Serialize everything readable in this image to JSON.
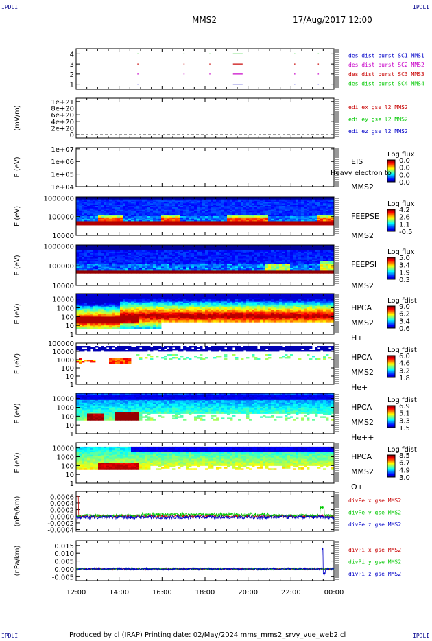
{
  "header": {
    "corner_label": "IPDLI",
    "spacecraft": "MMS2",
    "datetime": "17/Aug/2017 12:00"
  },
  "footer": {
    "text": "Produced by cl (IRAP)   Printing date: 02/May/2024   mms_mms2_srvy_vue_web2.cl"
  },
  "colors": {
    "blue": "#0000c8",
    "magenta": "#c800c8",
    "red": "#c80000",
    "green": "#00c800",
    "frame": "#000000"
  },
  "chart_data": [
    {
      "id": "des_dist",
      "type": "scatter",
      "ylim": [
        0.5,
        4.5
      ],
      "yticks": [
        "1",
        "2",
        "3",
        "4"
      ],
      "legend": [
        {
          "text": "des dist burst SC1 MMS1",
          "color": "#0000c8"
        },
        {
          "text": "des dist burst SC2 MMS2",
          "color": "#c800c8"
        },
        {
          "text": "des dist burst SC3 MMS3",
          "color": "#c80000"
        },
        {
          "text": "des dist burst SC4 MMS4",
          "color": "#00c800"
        }
      ],
      "series": [
        {
          "sc": 1,
          "color": "#0000c8",
          "segments": [
            [
              14.85,
              14.9
            ],
            [
              19.3,
              19.75
            ],
            [
              22.15,
              22.2
            ],
            [
              23.25,
              23.3
            ]
          ]
        },
        {
          "sc": 2,
          "color": "#c800c8",
          "segments": [
            [
              14.85,
              14.9
            ],
            [
              17.0,
              17.02
            ],
            [
              18.2,
              18.22
            ],
            [
              19.3,
              19.75
            ],
            [
              22.15,
              22.2
            ],
            [
              23.25,
              23.3
            ]
          ]
        },
        {
          "sc": 3,
          "color": "#c80000",
          "segments": [
            [
              14.85,
              14.9
            ],
            [
              17.0,
              17.02
            ],
            [
              18.2,
              18.22
            ],
            [
              19.3,
              19.75
            ],
            [
              22.15,
              22.2
            ],
            [
              23.25,
              23.3
            ]
          ]
        },
        {
          "sc": 4,
          "color": "#00c800",
          "segments": [
            [
              14.85,
              14.9
            ],
            [
              17.0,
              17.02
            ],
            [
              18.2,
              18.22
            ],
            [
              19.3,
              19.75
            ],
            [
              22.15,
              22.2
            ],
            [
              23.25,
              23.3
            ]
          ]
        }
      ]
    },
    {
      "id": "edi",
      "type": "line",
      "ylabel": "(mV/m)",
      "ylim": [
        -1e+20,
        1.1e+21
      ],
      "yticks": [
        "0",
        "2e+20",
        "4e+20",
        "6e+20",
        "8e+20",
        "1e+21"
      ],
      "yvalues": [
        0,
        2e+20,
        4e+20,
        6e+20,
        8e+20,
        1e+21
      ],
      "legend": [
        {
          "text": "edi ex gse l2 MMS2",
          "color": "#c80000"
        },
        {
          "text": "edi ey gse l2 MMS2",
          "color": "#00c800"
        },
        {
          "text": "edi ez gse l2 MMS2",
          "color": "#0000c8"
        }
      ]
    },
    {
      "id": "eis",
      "type": "heatmap",
      "ylabel": "E (eV)",
      "yticks": [
        "1e+04",
        "1e+05",
        "1e+06",
        "1e+07"
      ],
      "ylog": [
        4,
        7.1
      ],
      "labels": [
        "EIS",
        "Heavy electron to",
        "MMS2"
      ],
      "colorbar": {
        "title": "Log flux",
        "ticks": [
          "0.0",
          "0.0",
          "0.0",
          "0.0"
        ]
      }
    },
    {
      "id": "feeps_e",
      "type": "heatmap",
      "ylabel": "E (eV)",
      "yticks": [
        "10000",
        "100000",
        "1000000"
      ],
      "ylog": [
        4,
        6.05
      ],
      "labels": [
        "FEEPSE",
        "MMS2"
      ],
      "colorbar": {
        "title": "Log flux",
        "ticks": [
          "4.2",
          "2.6",
          "1.1",
          "-0.5"
        ]
      }
    },
    {
      "id": "feeps_i",
      "type": "heatmap",
      "ylabel": "E (eV)",
      "yticks": [
        "10000",
        "100000",
        "1000000"
      ],
      "ylog": [
        4,
        6.05
      ],
      "labels": [
        "FEEPSI",
        "MMS2"
      ],
      "colorbar": {
        "title": "Log flux",
        "ticks": [
          "5.0",
          "3.4",
          "1.9",
          "0.3"
        ]
      }
    },
    {
      "id": "hpca_h",
      "type": "heatmap",
      "ylabel": "E (eV)",
      "yticks": [
        "1",
        "10",
        "100",
        "1000",
        "10000"
      ],
      "ylog": [
        0,
        4.6
      ],
      "labels": [
        "HPCA",
        "MMS2",
        "H+"
      ],
      "colorbar": {
        "title": "Log fdist",
        "ticks": [
          "9.0",
          "6.2",
          "3.4",
          "0.6"
        ]
      }
    },
    {
      "id": "hpca_he",
      "type": "heatmap",
      "ylabel": "E (eV)",
      "yticks": [
        "1",
        "10",
        "100",
        "1000",
        "10000",
        "100000"
      ],
      "ylog": [
        0,
        5
      ],
      "labels": [
        "HPCA",
        "MMS2",
        "He+"
      ],
      "colorbar": {
        "title": "Log fdist",
        "ticks": [
          "6.0",
          "4.6",
          "3.2",
          "1.8"
        ]
      }
    },
    {
      "id": "hpca_he2",
      "type": "heatmap",
      "ylabel": "E (eV)",
      "yticks": [
        "1",
        "10",
        "100",
        "1000",
        "10000"
      ],
      "ylog": [
        0,
        4.6
      ],
      "labels": [
        "HPCA",
        "MMS2",
        "He++"
      ],
      "colorbar": {
        "title": "Log fdist",
        "ticks": [
          "6.9",
          "5.1",
          "3.3",
          "1.5"
        ]
      }
    },
    {
      "id": "hpca_o",
      "type": "heatmap",
      "ylabel": "E (eV)",
      "yticks": [
        "1",
        "10",
        "100",
        "1000",
        "10000"
      ],
      "ylog": [
        0,
        4.6
      ],
      "labels": [
        "HPCA",
        "MMS2",
        "O+"
      ],
      "colorbar": {
        "title": "Log fdist",
        "ticks": [
          "8.5",
          "6.7",
          "4.9",
          "3.0"
        ]
      }
    },
    {
      "id": "divpe",
      "type": "line",
      "ylabel": "(nPa/km)",
      "ylim": [
        -0.00045,
        0.00075
      ],
      "yticks": [
        "-0.0004",
        "-0.0002",
        "0.0000",
        "0.0002",
        "0.0004",
        "0.0006"
      ],
      "yvalues": [
        -0.0004,
        -0.0002,
        0,
        0.0002,
        0.0004,
        0.0006
      ],
      "legend": [
        {
          "text": "divPe x gse MMS2",
          "color": "#c80000"
        },
        {
          "text": "divPe y gse MMS2",
          "color": "#00c800"
        },
        {
          "text": "divPe z gse MMS2",
          "color": "#0000c8"
        }
      ]
    },
    {
      "id": "divpi",
      "type": "line",
      "ylabel": "(nPa/km)",
      "ylim": [
        -0.0075,
        0.018
      ],
      "yticks": [
        "-0.005",
        "0.000",
        "0.005",
        "0.010",
        "0.015"
      ],
      "yvalues": [
        -0.005,
        0,
        0.005,
        0.01,
        0.015
      ],
      "legend": [
        {
          "text": "divPi x gse MMS2",
          "color": "#c80000"
        },
        {
          "text": "divPi y gse MMS2",
          "color": "#00c800"
        },
        {
          "text": "divPi z gse MMS2",
          "color": "#0000c8"
        }
      ]
    }
  ],
  "xaxis": {
    "range": [
      12,
      24
    ],
    "ticks": [
      "12:00",
      "14:00",
      "16:00",
      "18:00",
      "20:00",
      "22:00",
      "00:00"
    ],
    "tick_values": [
      12,
      14,
      16,
      18,
      20,
      22,
      24
    ]
  }
}
